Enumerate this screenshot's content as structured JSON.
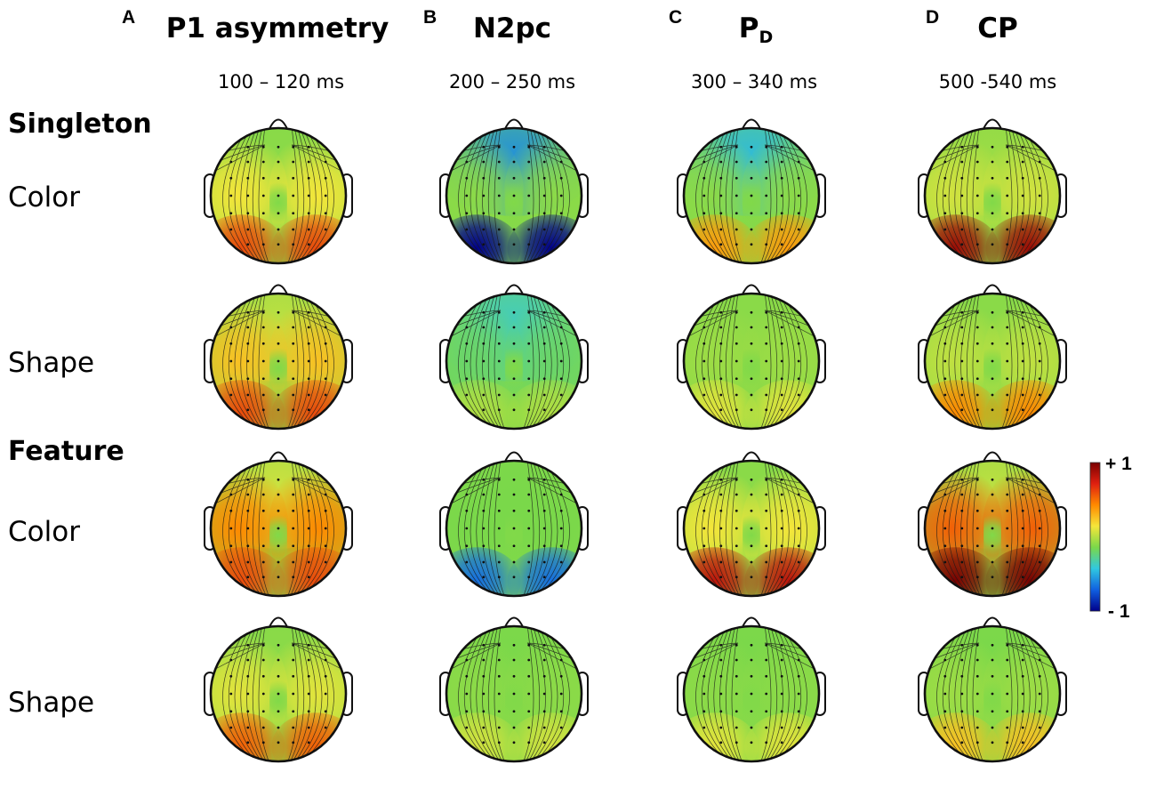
{
  "panels": [
    {
      "letter": "A",
      "title": "P1 asymmetry",
      "time": "100 – 120 ms"
    },
    {
      "letter": "B",
      "title": "N2pc",
      "time": "200 – 250 ms"
    },
    {
      "letter": "C",
      "title_main": "P",
      "title_sub": "D",
      "time": "300 – 340 ms"
    },
    {
      "letter": "D",
      "title": "CP",
      "time": "500 -540 ms"
    }
  ],
  "groups": {
    "singleton": "Singleton",
    "feature": "Feature"
  },
  "rows": [
    "Color",
    "Shape",
    "Color",
    "Shape"
  ],
  "colorbar": {
    "max_label": "+ 1",
    "min_label": "- 1",
    "range": [
      -1,
      1
    ],
    "colors": [
      "#7a0000",
      "#e02010",
      "#ff8a00",
      "#f5e63a",
      "#7ad84a",
      "#30c8e0",
      "#1060e0",
      "#00008a"
    ]
  },
  "maps": [
    [
      {
        "post": 0.75,
        "front": 0.05,
        "mid": 0.35
      },
      {
        "post": -1.0,
        "front": -0.45,
        "mid": 0.05
      },
      {
        "post": 0.55,
        "front": -0.3,
        "mid": 0.05
      },
      {
        "post": 0.95,
        "front": 0.1,
        "mid": 0.25
      }
    ],
    [
      {
        "post": 0.75,
        "front": 0.2,
        "mid": 0.45
      },
      {
        "post": 0.15,
        "front": -0.2,
        "mid": -0.05
      },
      {
        "post": 0.3,
        "front": 0.05,
        "mid": 0.1
      },
      {
        "post": 0.6,
        "front": 0.05,
        "mid": 0.2
      }
    ],
    [
      {
        "post": 0.75,
        "front": 0.25,
        "mid": 0.6
      },
      {
        "post": -0.55,
        "front": 0.0,
        "mid": 0.0
      },
      {
        "post": 0.9,
        "front": 0.05,
        "mid": 0.35
      },
      {
        "post": 1.0,
        "front": 0.2,
        "mid": 0.7
      }
    ],
    [
      {
        "post": 0.7,
        "front": 0.05,
        "mid": 0.3
      },
      {
        "post": 0.25,
        "front": 0.0,
        "mid": 0.05
      },
      {
        "post": 0.3,
        "front": 0.0,
        "mid": 0.05
      },
      {
        "post": 0.45,
        "front": 0.0,
        "mid": 0.1
      }
    ]
  ]
}
